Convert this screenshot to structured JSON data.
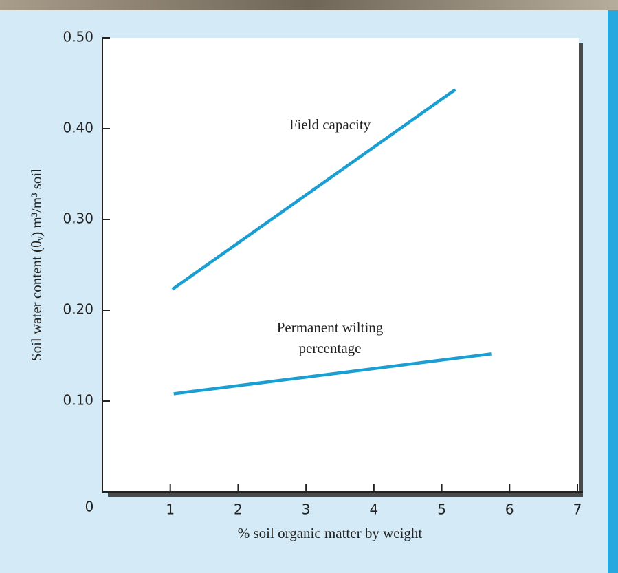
{
  "chart_data": {
    "type": "line",
    "xlabel": "% soil organic matter by weight",
    "ylabel": "Soil water content (θᵥ) m³/m³ soil",
    "series": [
      {
        "label": [
          "Field capacity"
        ],
        "color": "#1b9fd3",
        "x": [
          1.03,
          5.2
        ],
        "values": [
          0.223,
          0.443
        ]
      },
      {
        "label": [
          "Permanent wilting",
          "percentage"
        ],
        "color": "#1b9fd3",
        "x": [
          1.05,
          5.73
        ],
        "values": [
          0.108,
          0.152
        ]
      }
    ],
    "xlim": [
      0,
      7
    ],
    "xticks": [
      0,
      1,
      2,
      3,
      4,
      5,
      6,
      7
    ],
    "ylim": [
      0,
      0.5
    ],
    "yticks": [
      {
        "value": 0.1,
        "label": "0.10"
      },
      {
        "value": 0.2,
        "label": "0.20"
      },
      {
        "value": 0.3,
        "label": "0.30"
      },
      {
        "value": 0.4,
        "label": "0.40"
      },
      {
        "value": 0.5,
        "label": "0.50"
      }
    ]
  }
}
